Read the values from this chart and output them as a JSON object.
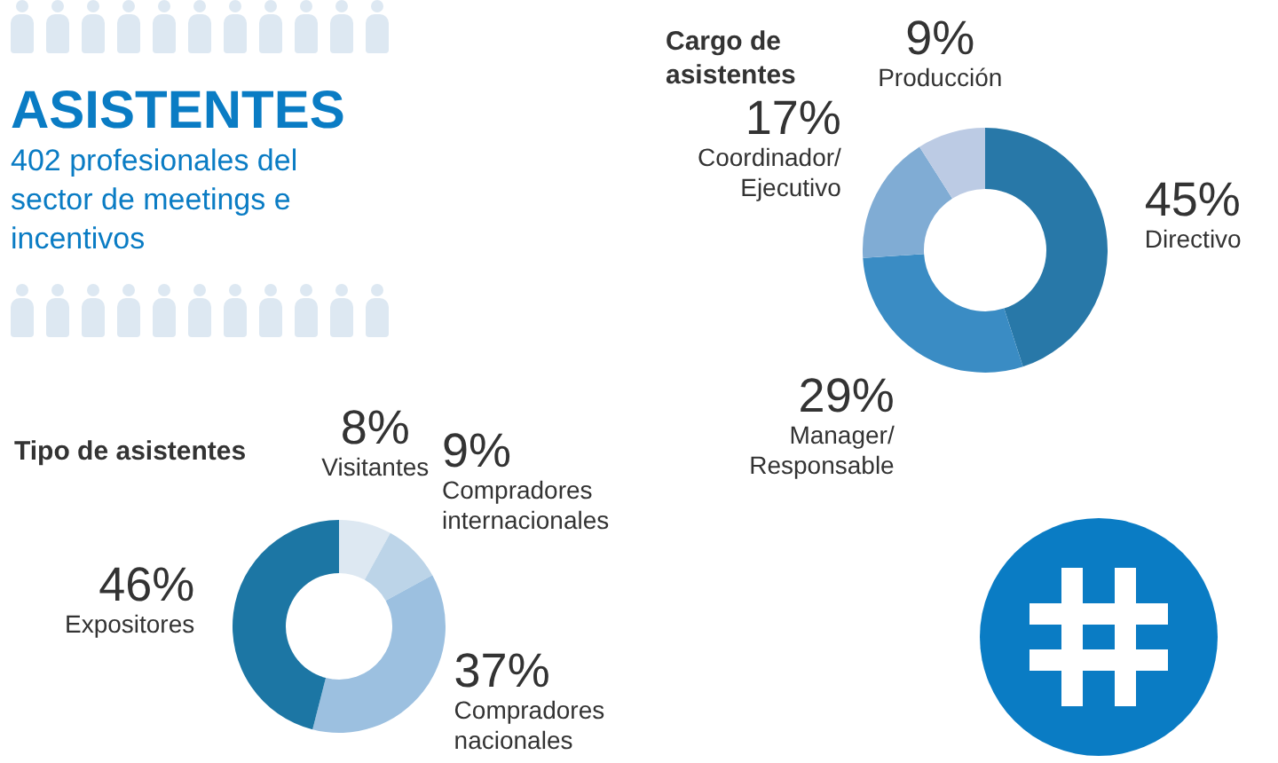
{
  "chart_data": [
    {
      "type": "other",
      "title": "ASISTENTES",
      "subtitle": "402 profesionales del sector de meetings e incentivos"
    },
    {
      "type": "donut",
      "title": "Cargo de asistentes",
      "categories": [
        "Directivo",
        "Manager/ Responsable",
        "Coordinador/ Ejecutivo",
        "Producción"
      ],
      "values": [
        45,
        29,
        17,
        9
      ],
      "colors": [
        "#2878a8",
        "#3a8cc4",
        "#80acd4",
        "#bccbe4"
      ],
      "value_labels": [
        "45%",
        "29%",
        "17%",
        "9%"
      ]
    },
    {
      "type": "donut",
      "title": "Tipo de asistentes",
      "categories": [
        "Visitantes",
        "Compradores internacionales",
        "Compradores nacionales",
        "Expositores"
      ],
      "values": [
        8,
        9,
        37,
        46
      ],
      "colors": [
        "#dde8f2",
        "#bcd4e8",
        "#9cc0e0",
        "#1c76a4"
      ],
      "value_labels": [
        "8%",
        "9%",
        "37%",
        "46%"
      ]
    }
  ]
}
